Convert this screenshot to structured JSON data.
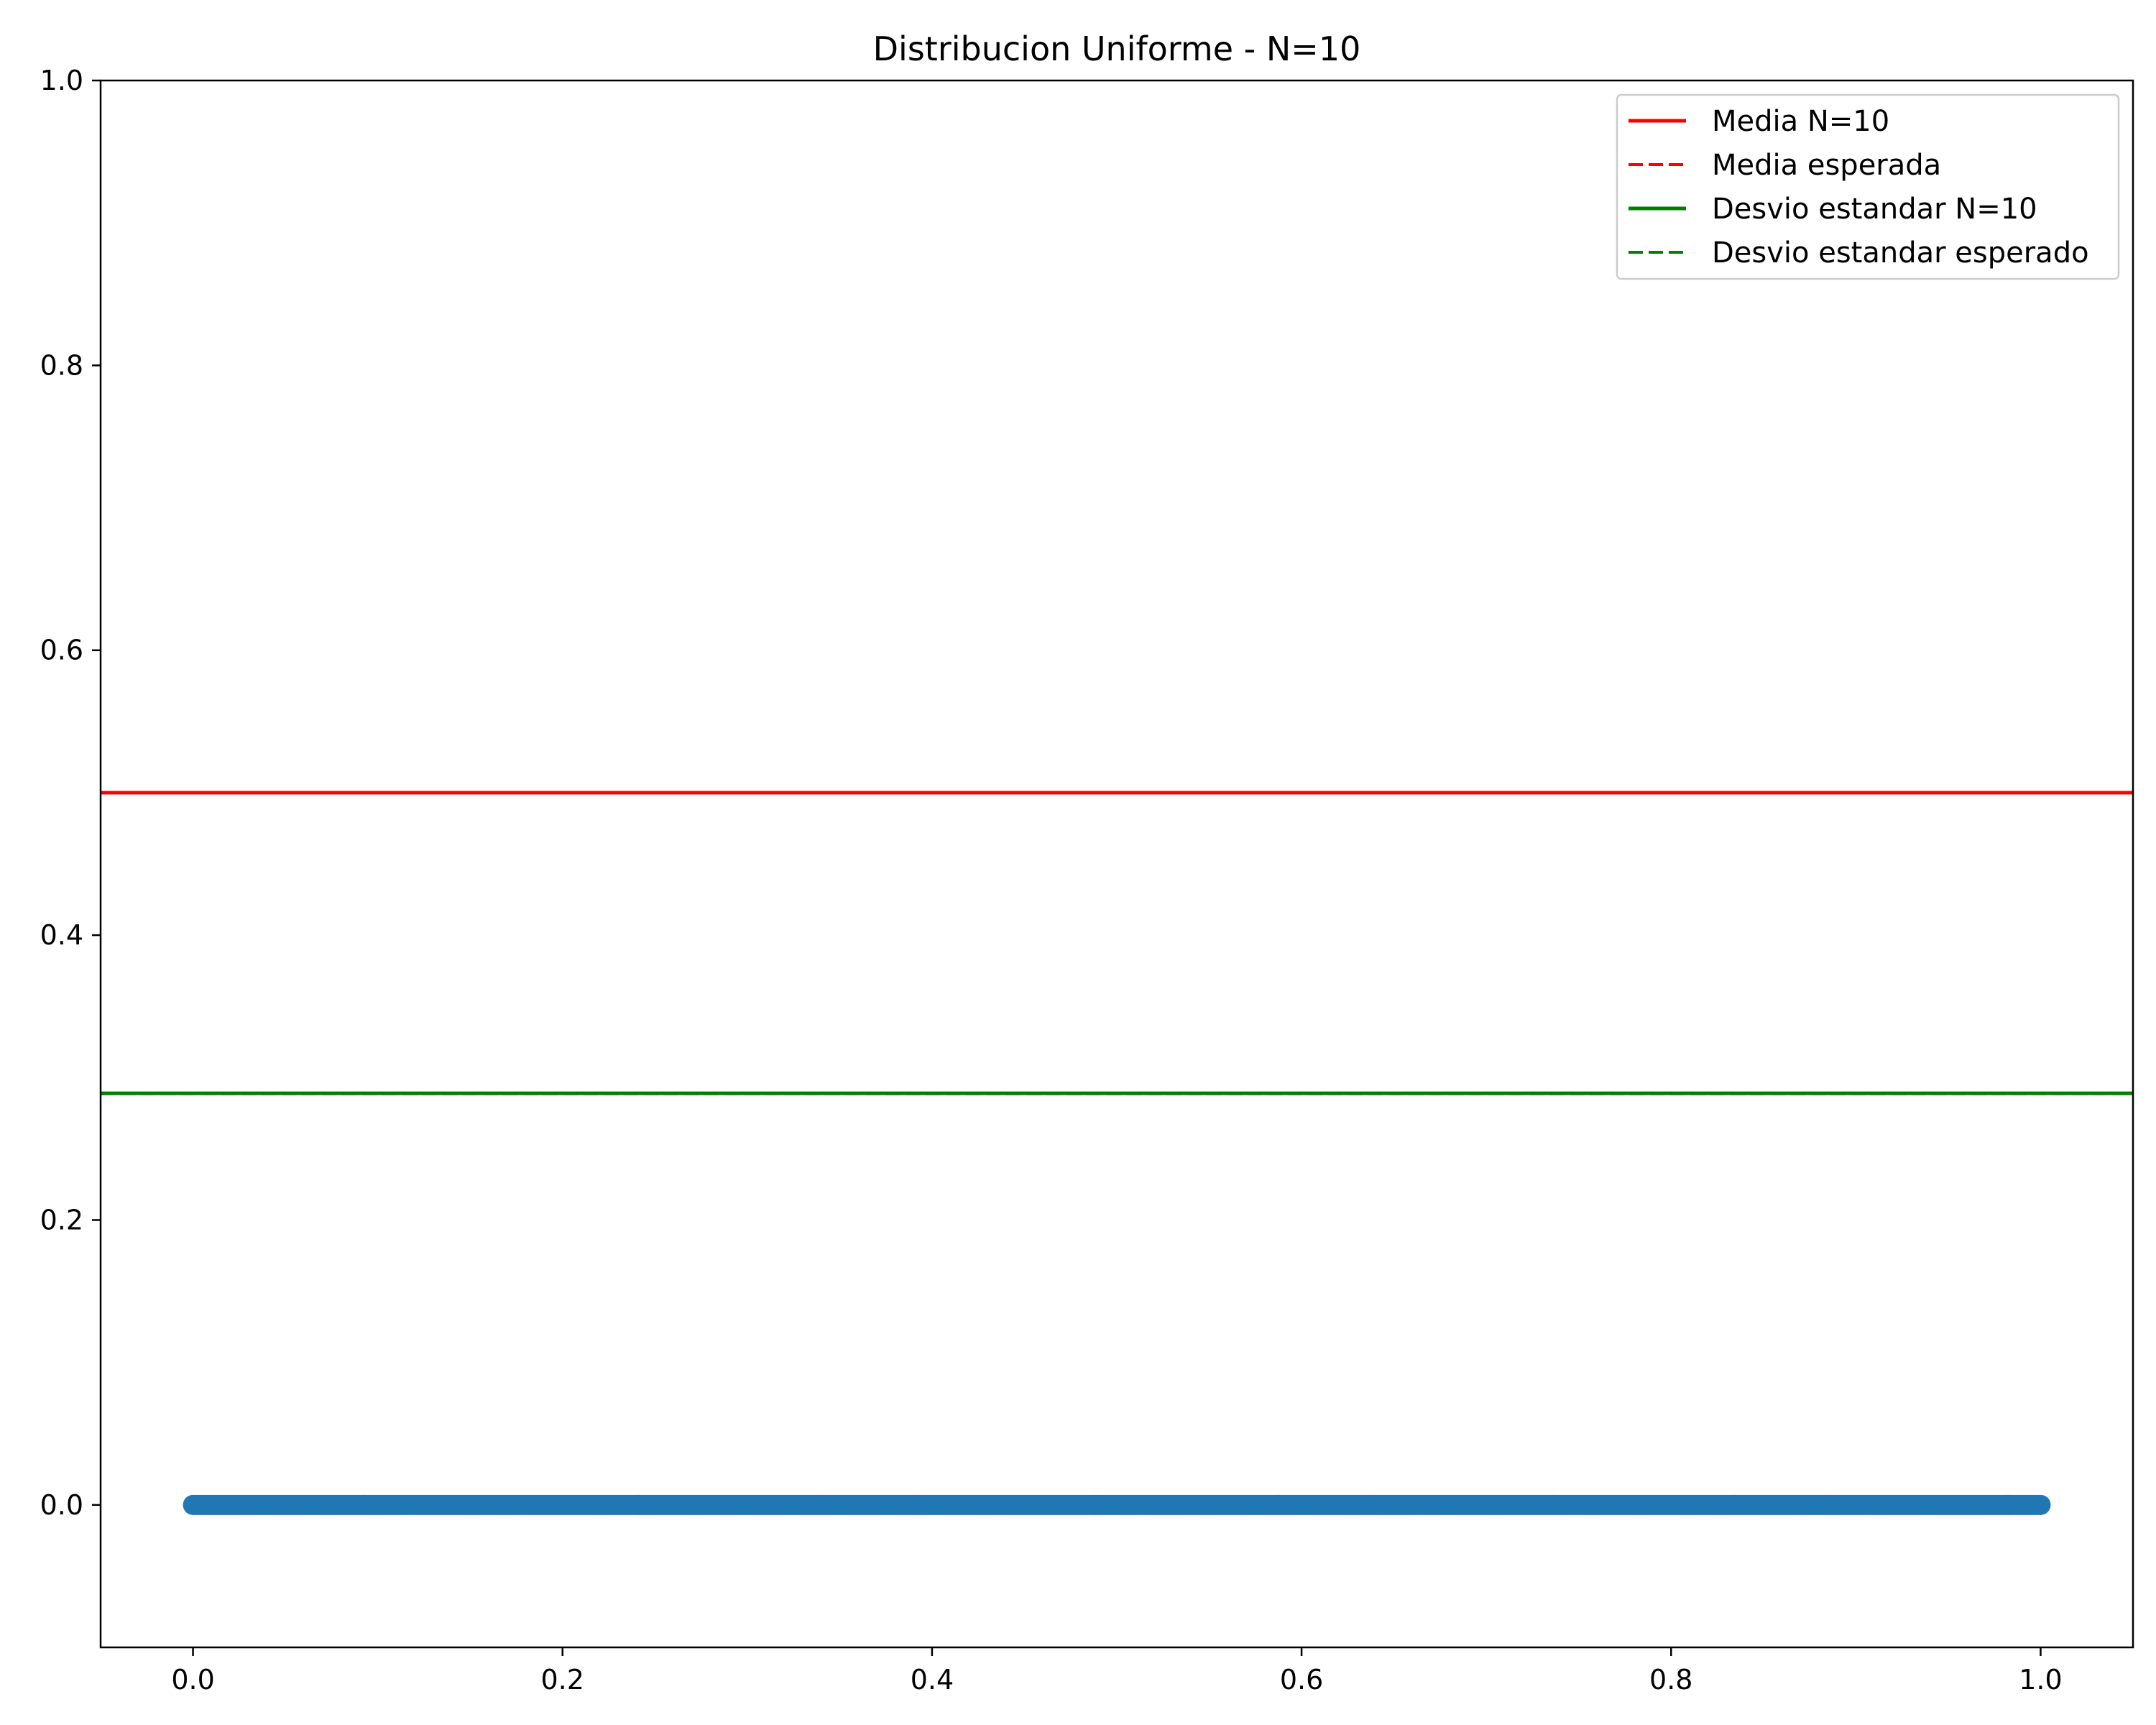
{
  "chart_data": {
    "type": "scatter",
    "title": "Distribucion Uniforme - N=10",
    "xlabel": "",
    "ylabel": "",
    "xlim": [
      -0.05,
      1.05
    ],
    "ylim": [
      -0.1,
      1.0
    ],
    "x_ticks": [
      0.0,
      0.2,
      0.4,
      0.6,
      0.8,
      1.0
    ],
    "x_tick_labels": [
      "0.0",
      "0.2",
      "0.4",
      "0.6",
      "0.8",
      "1.0"
    ],
    "y_ticks": [
      0.0,
      0.2,
      0.4,
      0.6,
      0.8,
      1.0
    ],
    "y_tick_labels": [
      "0.0",
      "0.2",
      "0.4",
      "0.6",
      "0.8",
      "1.0"
    ],
    "grid": false,
    "legend_position": "top-right",
    "scatter_series": {
      "color": "#1f77b4",
      "y": 0.0,
      "x_min": 0.0,
      "x_max": 1.0,
      "point_count": 1001
    },
    "reference_lines": [
      {
        "label": "Media N=10",
        "y": 0.5,
        "color": "#ff0000",
        "style": "solid"
      },
      {
        "label": "Media esperada",
        "y": 0.5,
        "color": "#ff0000",
        "style": "dashed"
      },
      {
        "label": "Desvio estandar N=10",
        "y": 0.289,
        "color": "#008000",
        "style": "solid"
      },
      {
        "label": "Desvio estandar esperado",
        "y": 0.2887,
        "color": "#008000",
        "style": "dashed"
      }
    ]
  }
}
